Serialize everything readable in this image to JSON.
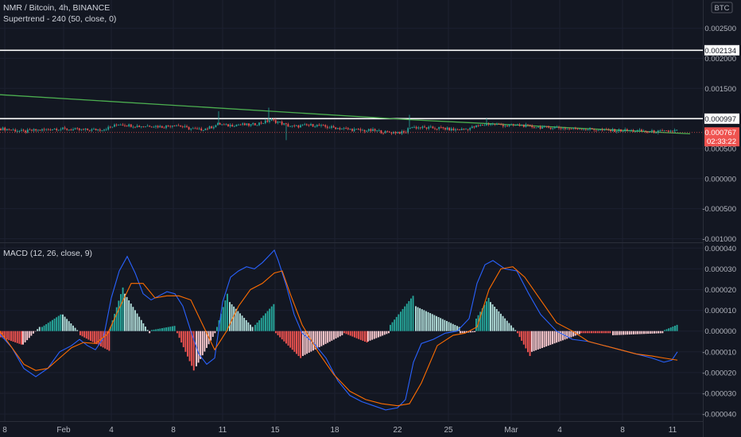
{
  "header": {
    "symbol_line": "NMR / Bitcoin, 4h, BINANCE",
    "indicator_line": "Supertrend - 240 (50, close, 0)",
    "currency_badge": "BTC",
    "macd_label": "MACD (12, 26, close, 9)"
  },
  "colors": {
    "background": "#131722",
    "up": "#26a69a",
    "down": "#ef5350",
    "histogram_up_strong": "#26a69a",
    "histogram_up_weak": "#b2dfdb",
    "histogram_down_strong": "#ef5350",
    "histogram_down_weak": "#ffcdd2",
    "macd_line": "#2962ff",
    "signal_line": "#ff6d00",
    "supertrend": "#4caf50",
    "horizontal_lines": "#ffffff",
    "price_tag": "#ef5350"
  },
  "chart_data": [
    {
      "type": "line",
      "title": "NMR / Bitcoin, 4h, BINANCE",
      "x_axis_ticks": [
        "8",
        "Feb",
        "4",
        "8",
        "11",
        "15",
        "18",
        "22",
        "25",
        "Mar",
        "4",
        "8",
        "11"
      ],
      "y_axis_ticks": [
        "0.002500",
        "0.002000",
        "0.001500",
        "0.000500",
        "0.000000",
        "-0.000500",
        "-0.001000"
      ],
      "ylim": [
        -0.00106,
        0.00297
      ],
      "price_path": {
        "x": [
          0,
          10,
          20,
          30,
          40,
          55,
          70,
          85,
          100,
          115,
          130,
          140,
          150,
          160,
          175,
          190,
          205,
          220,
          235,
          250,
          265,
          275,
          285,
          300,
          315,
          330,
          340,
          350,
          360,
          370,
          380,
          395,
          410,
          425,
          440,
          455,
          470,
          485,
          500,
          510,
          515,
          525,
          540,
          555,
          570,
          585,
          600,
          615,
          625,
          640,
          655,
          670,
          685,
          700,
          715,
          730,
          745,
          760,
          775,
          790,
          805,
          820,
          835,
          850
        ],
        "close": [
          0.00083,
          0.00082,
          0.0008,
          0.00078,
          0.0008,
          0.00081,
          0.00083,
          0.00082,
          0.00081,
          0.00081,
          0.00082,
          0.00086,
          0.00091,
          0.00089,
          0.00087,
          0.00088,
          0.00086,
          0.0009,
          0.00084,
          0.00081,
          0.00085,
          0.00091,
          0.00088,
          0.0009,
          0.00089,
          0.00093,
          0.00097,
          0.00094,
          0.00089,
          0.00086,
          0.00088,
          0.00089,
          0.00086,
          0.00084,
          0.00082,
          0.0008,
          0.0008,
          0.00077,
          0.00077,
          0.00076,
          0.00086,
          0.00085,
          0.00084,
          0.00084,
          0.00081,
          0.00082,
          0.00087,
          0.00091,
          0.0009,
          0.00088,
          0.00089,
          0.00086,
          0.00085,
          0.00085,
          0.00083,
          0.00083,
          0.00082,
          0.0008,
          0.0008,
          0.0008,
          0.00079,
          0.00078,
          0.00078,
          0.0008
        ]
      },
      "supertrend": {
        "x": [
          0,
          515,
          868
        ],
        "y": [
          0.001395,
          0.00098,
          0.000745
        ]
      },
      "horizontal_lines": [
        {
          "value": 0.002134,
          "label": "0.002134"
        },
        {
          "value": 0.000997,
          "label": "0.000997"
        }
      ],
      "last_price": {
        "value": 0.000767,
        "label": "0.000767",
        "countdown": "02:33:22"
      }
    },
    {
      "type": "line",
      "title": "MACD (12, 26, close, 9)",
      "y_axis_ticks": [
        "0.000040",
        "0.000030",
        "0.000020",
        "0.000010",
        "0.000000",
        "-0.000010",
        "-0.000020",
        "-0.000030",
        "-0.000040"
      ],
      "ylim": [
        -4.34e-05,
        4.24e-05
      ],
      "series": [
        {
          "key": "macd",
          "color": "#2962ff",
          "x": [
            0,
            15,
            30,
            45,
            60,
            75,
            90,
            100,
            110,
            120,
            130,
            140,
            150,
            160,
            170,
            180,
            190,
            200,
            210,
            220,
            230,
            240,
            250,
            260,
            270,
            280,
            290,
            300,
            310,
            320,
            330,
            340,
            345,
            350,
            360,
            370,
            380,
            395,
            410,
            425,
            440,
            455,
            470,
            485,
            500,
            510,
            520,
            530,
            545,
            560,
            575,
            590,
            600,
            610,
            620,
            635,
            650,
            665,
            680,
            700,
            720,
            740,
            760,
            780,
            800,
            820,
            835,
            845,
            852
          ],
          "y": [
            -1.5e-06,
            -8e-06,
            -1.8e-05,
            -2.2e-05,
            -1.8e-05,
            -1e-05,
            -7e-06,
            -4e-06,
            -7e-06,
            -9e-06,
            -3.5e-06,
            1.6e-05,
            2.9e-05,
            3.6e-05,
            2.8e-05,
            1.8e-05,
            1.5e-05,
            1.7e-05,
            1.9e-05,
            1.8e-05,
            1.2e-05,
            0.0,
            -1.1e-05,
            -1.6e-05,
            -1.3e-05,
            1.4e-05,
            2.6e-05,
            2.9e-05,
            3.1e-05,
            3e-05,
            3.3e-05,
            3.7e-05,
            3.9e-05,
            3.4e-05,
            2.2e-05,
            8e-06,
            -1e-06,
            -6e-06,
            -1.3e-05,
            -2.4e-05,
            -3.1e-05,
            -3.4e-05,
            -3.6e-05,
            -3.8e-05,
            -3.7e-05,
            -3.3e-05,
            -1.5e-05,
            -6e-06,
            -4e-06,
            -1e-06,
            0.0,
            6e-06,
            2.3e-05,
            3.2e-05,
            3.4e-05,
            3e-05,
            2.9e-05,
            1.8e-05,
            8e-06,
            0.0,
            -4e-06,
            -5e-06,
            -7e-06,
            -9e-06,
            -1.1e-05,
            -1.3e-05,
            -1.5e-05,
            -1.4e-05,
            -1e-05
          ]
        },
        {
          "key": "signal",
          "color": "#ff6d00",
          "x": [
            0,
            15,
            30,
            45,
            60,
            75,
            90,
            105,
            120,
            135,
            150,
            165,
            180,
            195,
            210,
            225,
            240,
            255,
            270,
            285,
            300,
            315,
            330,
            345,
            355,
            365,
            380,
            400,
            420,
            440,
            460,
            480,
            500,
            515,
            530,
            550,
            570,
            585,
            600,
            615,
            630,
            645,
            660,
            680,
            700,
            720,
            740,
            760,
            780,
            800,
            820,
            835,
            852
          ],
          "y": [
            0.0,
            -8e-06,
            -1.6e-05,
            -1.9e-05,
            -1.8e-05,
            -1.3e-05,
            -8e-06,
            -5.5e-06,
            -6e-06,
            -1.5e-06,
            1.1e-05,
            2.3e-05,
            2.3e-05,
            1.6e-05,
            1.7e-05,
            1.7e-05,
            1.5e-05,
            3e-06,
            -9e-06,
            0.0,
            1.2e-05,
            2e-05,
            2.3e-05,
            2.8e-05,
            2.9e-05,
            1.8e-05,
            3e-06,
            -1e-05,
            -2.1e-05,
            -2.9e-05,
            -3.3e-05,
            -3.5e-05,
            -3.6e-05,
            -3.5e-05,
            -2.5e-05,
            -7e-06,
            -2e-06,
            -1e-06,
            2e-06,
            2e-05,
            3e-05,
            3.1e-05,
            2.6e-05,
            1.5e-05,
            4e-06,
            0.0,
            -5e-06,
            -7e-06,
            -9e-06,
            -1.1e-05,
            -1.2e-05,
            -1.3e-05,
            -1.4e-05
          ]
        }
      ],
      "histogram_segments": [
        {
          "x_from": 0,
          "x_to": 28,
          "from": -3e-06,
          "to": -6.5e-06
        },
        {
          "x_from": 28,
          "x_to": 52,
          "from": -6.5e-06,
          "to": 2e-06
        },
        {
          "x_from": 52,
          "x_to": 78,
          "from": 2e-06,
          "to": 8e-06
        },
        {
          "x_from": 78,
          "x_to": 100,
          "from": 8e-06,
          "to": 5e-07
        },
        {
          "x_from": 100,
          "x_to": 138,
          "from": -2e-06,
          "to": -9.5e-06
        },
        {
          "x_from": 138,
          "x_to": 156,
          "from": 2e-06,
          "to": 2.1e-05
        },
        {
          "x_from": 156,
          "x_to": 190,
          "from": 1.8e-05,
          "to": -1e-06
        },
        {
          "x_from": 190,
          "x_to": 222,
          "from": 5e-07,
          "to": 2.5e-06
        },
        {
          "x_from": 222,
          "x_to": 246,
          "from": -1e-06,
          "to": -1.9e-05
        },
        {
          "x_from": 246,
          "x_to": 272,
          "from": -1.7e-05,
          "to": -1e-06
        },
        {
          "x_from": 272,
          "x_to": 288,
          "from": 2e-06,
          "to": 1.8e-05
        },
        {
          "x_from": 288,
          "x_to": 320,
          "from": 1.4e-05,
          "to": 2e-06
        },
        {
          "x_from": 320,
          "x_to": 346,
          "from": 3e-06,
          "to": 1.3e-05
        },
        {
          "x_from": 346,
          "x_to": 380,
          "from": -1e-06,
          "to": -1.3e-05
        },
        {
          "x_from": 380,
          "x_to": 432,
          "from": -1.2e-05,
          "to": -2e-06
        },
        {
          "x_from": 432,
          "x_to": 462,
          "from": -1e-06,
          "to": -5.5e-06
        },
        {
          "x_from": 462,
          "x_to": 490,
          "from": -5e-06,
          "to": -1e-06
        },
        {
          "x_from": 490,
          "x_to": 522,
          "from": 3e-06,
          "to": 1.7e-05
        },
        {
          "x_from": 522,
          "x_to": 578,
          "from": 1.2e-05,
          "to": 2e-06
        },
        {
          "x_from": 578,
          "x_to": 598,
          "from": -1e-06,
          "to": -5e-07
        },
        {
          "x_from": 598,
          "x_to": 616,
          "from": 6e-06,
          "to": 1.6e-05
        },
        {
          "x_from": 616,
          "x_to": 650,
          "from": 1.4e-05,
          "to": 5e-07
        },
        {
          "x_from": 650,
          "x_to": 668,
          "from": -1e-06,
          "to": -1.2e-05
        },
        {
          "x_from": 668,
          "x_to": 730,
          "from": -1e-05,
          "to": -1.5e-06
        },
        {
          "x_from": 730,
          "x_to": 770,
          "from": -1e-06,
          "to": -1e-06
        },
        {
          "x_from": 770,
          "x_to": 835,
          "from": -2e-06,
          "to": -1e-06
        },
        {
          "x_from": 835,
          "x_to": 852,
          "from": 5e-07,
          "to": 3e-06
        }
      ]
    }
  ]
}
